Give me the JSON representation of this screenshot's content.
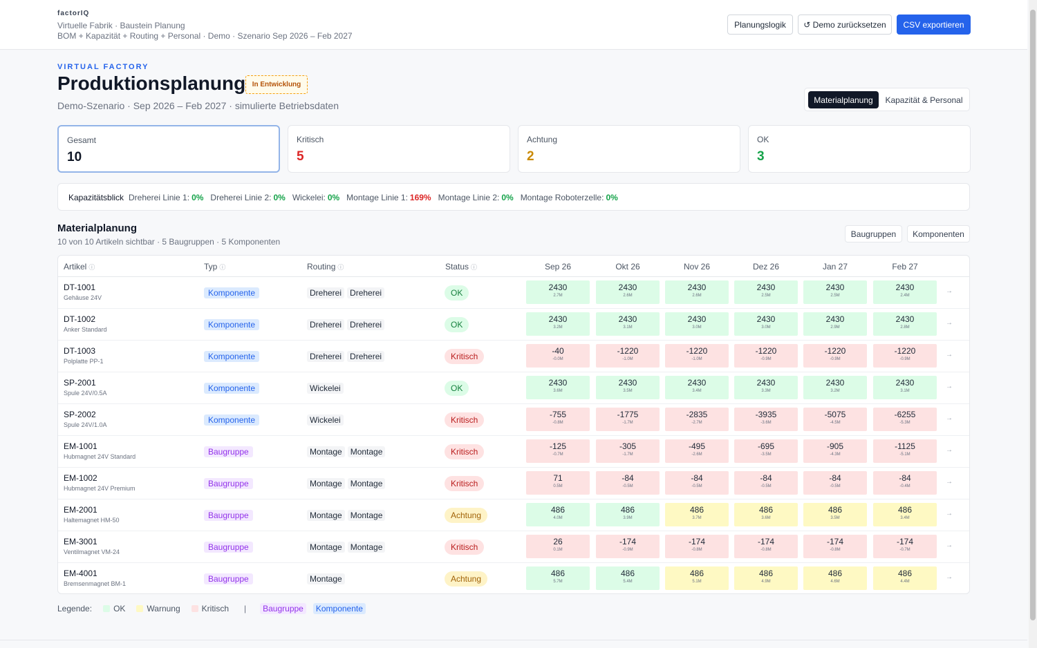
{
  "header": {
    "brand": "factorIQ",
    "subtitle1": "Virtuelle Fabrik · Baustein Planung",
    "subtitle2": "BOM + Kapazität + Routing + Personal · Demo · Szenario Sep 2026 – Feb 2027",
    "btn_logic": "Planungslogik",
    "btn_reset": "↺ Demo zurücksetzen",
    "btn_export": "CSV exportieren"
  },
  "page": {
    "eyebrow": "VIRTUAL FACTORY",
    "title": "Produktionsplanung",
    "badge": "In Entwicklung",
    "subtitle": "Demo-Szenario · Sep 2026 – Feb 2027 · simulierte Betriebsdaten",
    "view_tabs": [
      "Materialplanung",
      "Kapazität & Personal"
    ]
  },
  "summary": [
    {
      "label": "Gesamt",
      "value": "10",
      "color": "#111827"
    },
    {
      "label": "Kritisch",
      "value": "5",
      "color": "#dc2626"
    },
    {
      "label": "Achtung",
      "value": "2",
      "color": "#ca8a04"
    },
    {
      "label": "OK",
      "value": "3",
      "color": "#16a34a"
    }
  ],
  "capacity": {
    "title": "Kapazitätsblick",
    "items": [
      {
        "name": "Dreherei Linie 1:",
        "value": "0%",
        "color": "#16a34a"
      },
      {
        "name": "Dreherei Linie 2:",
        "value": "0%",
        "color": "#16a34a"
      },
      {
        "name": "Wickelei:",
        "value": "0%",
        "color": "#16a34a"
      },
      {
        "name": "Montage Linie 1:",
        "value": "169%",
        "color": "#dc2626"
      },
      {
        "name": "Montage Linie 2:",
        "value": "0%",
        "color": "#16a34a"
      },
      {
        "name": "Montage Roboterzelle:",
        "value": "0%",
        "color": "#16a34a"
      }
    ]
  },
  "material": {
    "title": "Materialplanung",
    "subtitle": "10 von 10 Artikeln sichtbar · 5 Baugruppen · 5 Komponenten",
    "filter_assemblies": "Baugruppen",
    "filter_components": "Komponenten",
    "columns": {
      "artikel": "Artikel",
      "typ": "Typ",
      "routing": "Routing",
      "status": "Status"
    },
    "info_icon": "ⓘ",
    "months": [
      "Sep 26",
      "Okt 26",
      "Nov 26",
      "Dez 26",
      "Jan 27",
      "Feb 27"
    ],
    "row_arrow": "→",
    "rows": [
      {
        "code": "DT-1001",
        "desc": "Gehäuse 24V",
        "type": "Komponente",
        "tk": "k",
        "routing": [
          "Dreherei",
          "Dreherei"
        ],
        "status": "OK",
        "sk": "ok",
        "cells": [
          [
            "2430",
            "2.7M",
            "g"
          ],
          [
            "2430",
            "2.6M",
            "g"
          ],
          [
            "2430",
            "2.6M",
            "g"
          ],
          [
            "2430",
            "2.5M",
            "g"
          ],
          [
            "2430",
            "2.5M",
            "g"
          ],
          [
            "2430",
            "2.4M",
            "g"
          ]
        ]
      },
      {
        "code": "DT-1002",
        "desc": "Anker Standard",
        "type": "Komponente",
        "tk": "k",
        "routing": [
          "Dreherei",
          "Dreherei"
        ],
        "status": "OK",
        "sk": "ok",
        "cells": [
          [
            "2430",
            "3.2M",
            "g"
          ],
          [
            "2430",
            "3.1M",
            "g"
          ],
          [
            "2430",
            "3.0M",
            "g"
          ],
          [
            "2430",
            "3.0M",
            "g"
          ],
          [
            "2430",
            "2.9M",
            "g"
          ],
          [
            "2430",
            "2.8M",
            "g"
          ]
        ]
      },
      {
        "code": "DT-1003",
        "desc": "Polplatte PP-1",
        "type": "Komponente",
        "tk": "k",
        "routing": [
          "Dreherei",
          "Dreherei"
        ],
        "status": "Kritisch",
        "sk": "kr",
        "cells": [
          [
            "-40",
            "-0.0M",
            "r"
          ],
          [
            "-1220",
            "-1.0M",
            "r"
          ],
          [
            "-1220",
            "-1.0M",
            "r"
          ],
          [
            "-1220",
            "-0.9M",
            "r"
          ],
          [
            "-1220",
            "-0.9M",
            "r"
          ],
          [
            "-1220",
            "-0.9M",
            "r"
          ]
        ]
      },
      {
        "code": "SP-2001",
        "desc": "Spule 24V/0.5A",
        "type": "Komponente",
        "tk": "k",
        "routing": [
          "Wickelei"
        ],
        "status": "OK",
        "sk": "ok",
        "cells": [
          [
            "2430",
            "3.6M",
            "g"
          ],
          [
            "2430",
            "3.5M",
            "g"
          ],
          [
            "2430",
            "3.4M",
            "g"
          ],
          [
            "2430",
            "3.3M",
            "g"
          ],
          [
            "2430",
            "3.2M",
            "g"
          ],
          [
            "2430",
            "3.1M",
            "g"
          ]
        ]
      },
      {
        "code": "SP-2002",
        "desc": "Spule 24V/1.0A",
        "type": "Komponente",
        "tk": "k",
        "routing": [
          "Wickelei"
        ],
        "status": "Kritisch",
        "sk": "kr",
        "cells": [
          [
            "-755",
            "-0.8M",
            "r"
          ],
          [
            "-1775",
            "-1.7M",
            "r"
          ],
          [
            "-2835",
            "-2.7M",
            "r"
          ],
          [
            "-3935",
            "-3.6M",
            "r"
          ],
          [
            "-5075",
            "-4.5M",
            "r"
          ],
          [
            "-6255",
            "-5.3M",
            "r"
          ]
        ]
      },
      {
        "code": "EM-1001",
        "desc": "Hubmagnet 24V Standard",
        "type": "Baugruppe",
        "tk": "b",
        "routing": [
          "Montage",
          "Montage"
        ],
        "status": "Kritisch",
        "sk": "kr",
        "cells": [
          [
            "-125",
            "-0.7M",
            "r"
          ],
          [
            "-305",
            "-1.7M",
            "r"
          ],
          [
            "-495",
            "-2.6M",
            "r"
          ],
          [
            "-695",
            "-3.5M",
            "r"
          ],
          [
            "-905",
            "-4.3M",
            "r"
          ],
          [
            "-1125",
            "-5.1M",
            "r"
          ]
        ]
      },
      {
        "code": "EM-1002",
        "desc": "Hubmagnet 24V Premium",
        "type": "Baugruppe",
        "tk": "b",
        "routing": [
          "Montage",
          "Montage"
        ],
        "status": "Kritisch",
        "sk": "kr",
        "cells": [
          [
            "71",
            "0.5M",
            "r"
          ],
          [
            "-84",
            "-0.5M",
            "r"
          ],
          [
            "-84",
            "-0.5M",
            "r"
          ],
          [
            "-84",
            "-0.5M",
            "r"
          ],
          [
            "-84",
            "-0.5M",
            "r"
          ],
          [
            "-84",
            "-0.4M",
            "r"
          ]
        ]
      },
      {
        "code": "EM-2001",
        "desc": "Haltemagnet HM-50",
        "type": "Baugruppe",
        "tk": "b",
        "routing": [
          "Montage",
          "Montage"
        ],
        "status": "Achtung",
        "sk": "ac",
        "cells": [
          [
            "486",
            "4.0M",
            "g"
          ],
          [
            "486",
            "3.9M",
            "g"
          ],
          [
            "486",
            "3.7M",
            "y"
          ],
          [
            "486",
            "3.6M",
            "y"
          ],
          [
            "486",
            "3.5M",
            "y"
          ],
          [
            "486",
            "3.4M",
            "y"
          ]
        ]
      },
      {
        "code": "EM-3001",
        "desc": "Ventilmagnet VM-24",
        "type": "Baugruppe",
        "tk": "b",
        "routing": [
          "Montage",
          "Montage"
        ],
        "status": "Kritisch",
        "sk": "kr",
        "cells": [
          [
            "26",
            "0.1M",
            "r"
          ],
          [
            "-174",
            "-0.9M",
            "r"
          ],
          [
            "-174",
            "-0.8M",
            "r"
          ],
          [
            "-174",
            "-0.8M",
            "r"
          ],
          [
            "-174",
            "-0.8M",
            "r"
          ],
          [
            "-174",
            "-0.7M",
            "r"
          ]
        ]
      },
      {
        "code": "EM-4001",
        "desc": "Bremsenmagnet BM-1",
        "type": "Baugruppe",
        "tk": "b",
        "routing": [
          "Montage"
        ],
        "status": "Achtung",
        "sk": "ac",
        "cells": [
          [
            "486",
            "5.7M",
            "g"
          ],
          [
            "486",
            "5.4M",
            "g"
          ],
          [
            "486",
            "5.1M",
            "y"
          ],
          [
            "486",
            "4.9M",
            "y"
          ],
          [
            "486",
            "4.6M",
            "y"
          ],
          [
            "486",
            "4.4M",
            "y"
          ]
        ]
      }
    ]
  },
  "legend": {
    "label": "Legende:",
    "ok": "OK",
    "ok_color": "#dcfce7",
    "warn": "Warnung",
    "warn_color": "#fef9c3",
    "crit": "Kritisch",
    "crit_color": "#fde2e2",
    "sep": "|",
    "assembly": "Baugruppe",
    "component": "Komponente"
  }
}
